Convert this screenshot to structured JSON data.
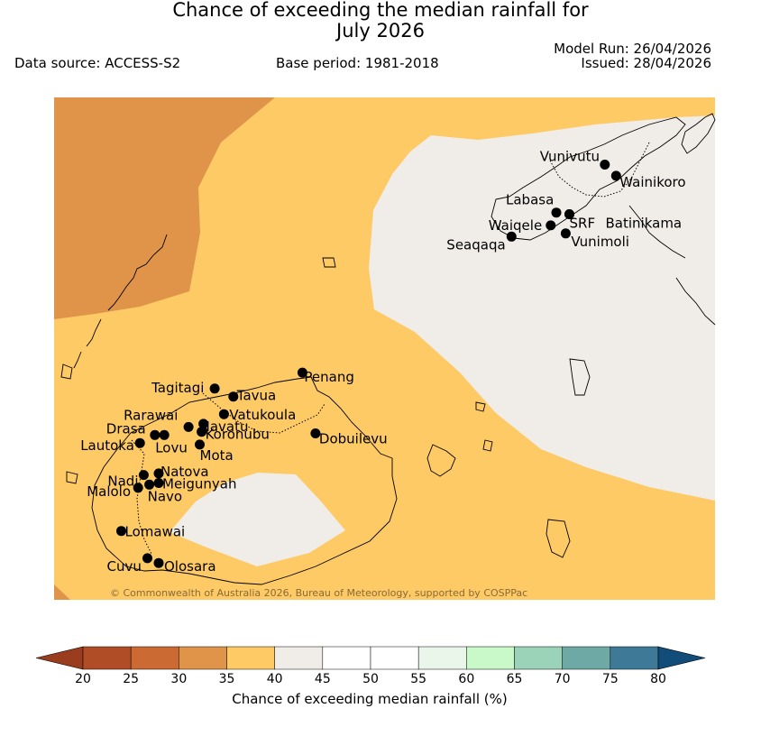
{
  "title_line1": "Chance of exceeding the median rainfall for",
  "title_line2": "July 2026",
  "data_source": "Data source: ACCESS-S2",
  "base_period": "Base period: 1981-2018",
  "model_run": "Model Run: 26/04/2026",
  "issued": "Issued: 28/04/2026",
  "copyright": "© Commonwealth of Australia 2026, Bureau of Meteorology, supported by COSPPac",
  "colors": {
    "band_30_35": "#e0944a",
    "band_35_40": "#fdca65",
    "band_40_45": "#f0ece8",
    "ocean_fill": "#fdca65",
    "coast": "#000000"
  },
  "stations": [
    {
      "name": "Vunivutu",
      "lon": 179.92,
      "lat": -16.1
    },
    {
      "name": "Wainikoro",
      "lon": 179.98,
      "lat": -16.17
    },
    {
      "name": "Labasa",
      "lon": 179.66,
      "lat": -16.4
    },
    {
      "name": "SRF",
      "lon": 179.73,
      "lat": -16.41
    },
    {
      "name": "Batinikama",
      "lon": 179.73,
      "lat": -16.41
    },
    {
      "name": "Waiqele",
      "lon": 179.63,
      "lat": -16.48
    },
    {
      "name": "Vunimoli",
      "lon": 179.71,
      "lat": -16.53
    },
    {
      "name": "Seaqaqa",
      "lon": 179.42,
      "lat": -16.55
    },
    {
      "name": "Penang",
      "lon": 178.3,
      "lat": -17.4
    },
    {
      "name": "Tagitagi",
      "lon": 177.83,
      "lat": -17.5
    },
    {
      "name": "Tavua",
      "lon": 177.93,
      "lat": -17.55
    },
    {
      "name": "Vatukoula",
      "lon": 177.88,
      "lat": -17.66
    },
    {
      "name": "Rarawai",
      "lon": 177.69,
      "lat": -17.74
    },
    {
      "name": "Navatu",
      "lon": 177.77,
      "lat": -17.72
    },
    {
      "name": "Drasa",
      "lon": 177.51,
      "lat": -17.79
    },
    {
      "name": "Lovu",
      "lon": 177.56,
      "lat": -17.79
    },
    {
      "name": "Koronubu",
      "lon": 177.76,
      "lat": -17.77
    },
    {
      "name": "Lautoka",
      "lon": 177.43,
      "lat": -17.84
    },
    {
      "name": "Mota",
      "lon": 177.75,
      "lat": -17.85
    },
    {
      "name": "Dobuilevu",
      "lon": 178.37,
      "lat": -17.78
    },
    {
      "name": "Natova",
      "lon": 177.53,
      "lat": -18.03
    },
    {
      "name": "Nadi",
      "lon": 177.45,
      "lat": -18.04
    },
    {
      "name": "Meigunyah",
      "lon": 177.53,
      "lat": -18.09
    },
    {
      "name": "Navo",
      "lon": 177.48,
      "lat": -18.1
    },
    {
      "name": "Malolo",
      "lon": 177.42,
      "lat": -18.12
    },
    {
      "name": "Lomawai",
      "lon": 177.33,
      "lat": -18.39
    },
    {
      "name": "Cuvu",
      "lon": 177.47,
      "lat": -18.56
    },
    {
      "name": "Olosara",
      "lon": 177.53,
      "lat": -18.59
    }
  ],
  "legend": {
    "title": "Chance of exceeding median rainfall (%)",
    "ticks": [
      "20",
      "25",
      "30",
      "35",
      "40",
      "45",
      "50",
      "55",
      "60",
      "65",
      "70",
      "75",
      "80"
    ],
    "below_color": "#9a3c1e",
    "above_color": "#124c78",
    "colors": [
      "#b04c26",
      "#cc6a33",
      "#e0944a",
      "#fdca65",
      "#f0ece8",
      "#ffffff",
      "#ffffff",
      "#eaf6ea",
      "#c9f9c9",
      "#9ad3b8",
      "#6ea9a6",
      "#3e7998"
    ]
  }
}
